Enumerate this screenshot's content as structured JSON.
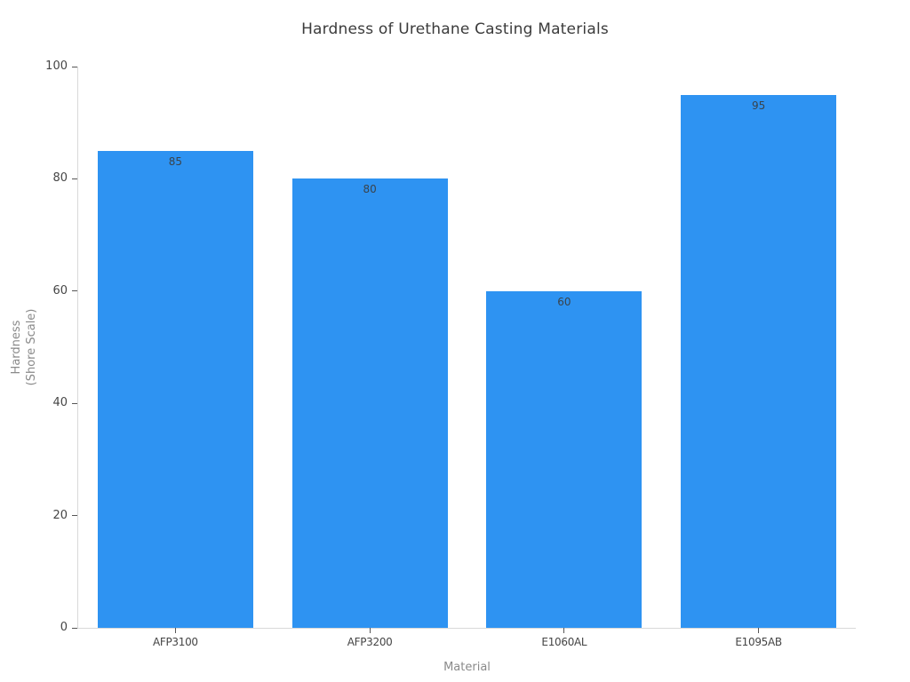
{
  "chart_data": {
    "type": "bar",
    "title": "Hardness of Urethane Casting Materials",
    "xlabel": "Material",
    "ylabel": "Hardness (Shore Scale)",
    "ylabel_lines": [
      "Hardness",
      "(Shore Scale)"
    ],
    "categories": [
      "AFP3100",
      "AFP3200",
      "E1060AL",
      "E1095AB"
    ],
    "values": [
      85,
      80,
      60,
      95
    ],
    "value_labels": [
      "85",
      "80",
      "60",
      "95"
    ],
    "yticks": [
      "0",
      "20",
      "40",
      "60",
      "80",
      "100"
    ],
    "ytick_values": [
      0,
      20,
      40,
      60,
      80,
      100
    ],
    "ylim": [
      0,
      100
    ],
    "grid": false,
    "legend_position": "none",
    "value_label_position": "inside-top"
  },
  "colors": {
    "background": "#ffffff",
    "bar_fill": "#2e93f2",
    "axis_line": "#d9d9d9",
    "tick_mark": "#565656",
    "tick_label": "#454545",
    "axis_title": "#8a8a8a",
    "chart_title": "#3b3b3b",
    "bar_value_label": "#3a434b"
  }
}
